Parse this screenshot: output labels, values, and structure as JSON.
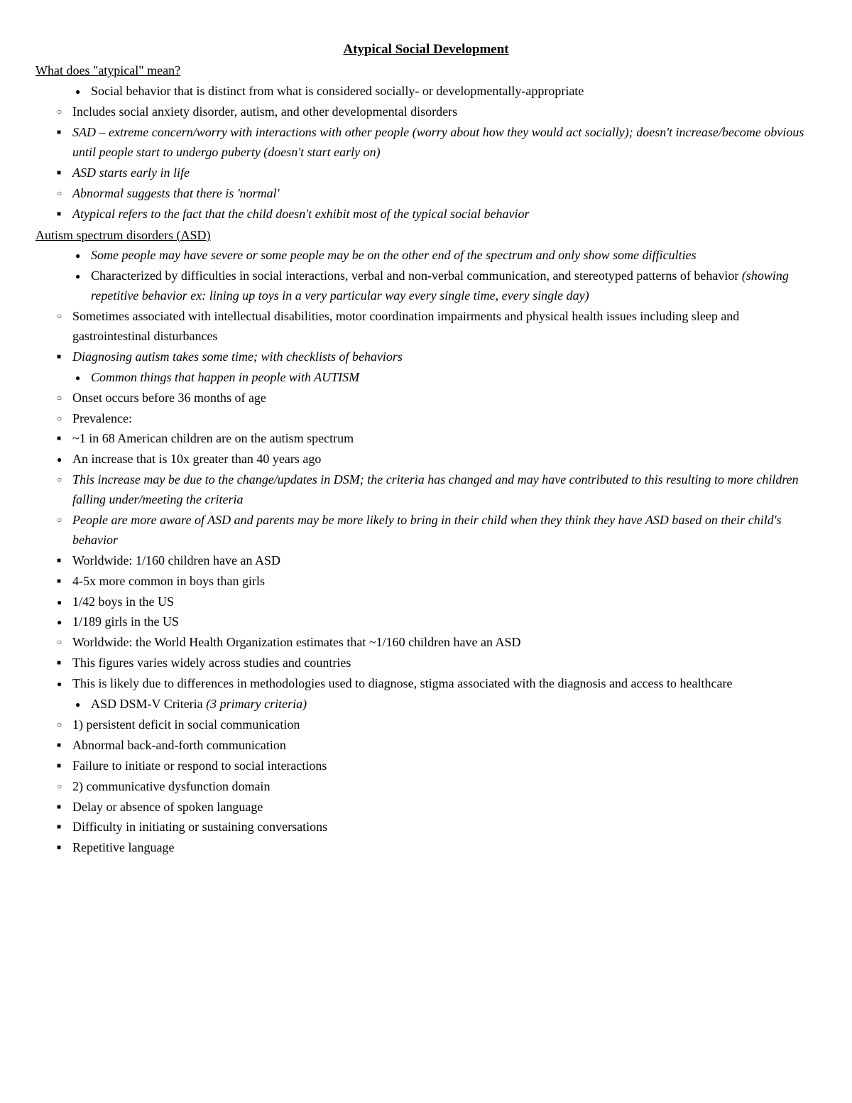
{
  "title": "Atypical Social Development",
  "section1": {
    "heading": "What does \"atypical\" mean?",
    "l1_1": "Social behavior that is distinct from what is considered socially- or developmentally-appropriate",
    "l2_1": "Includes social anxiety disorder, autism, and other developmental disorders",
    "l3_1": "SAD – extreme concern/worry with interactions with other people (worry about how they would act socially); doesn't increase/become obvious until people start to undergo puberty (doesn't start early on)",
    "l3_2": "ASD starts early in life",
    "l2_2": "Abnormal suggests that there is 'normal'",
    "l3_3": "Atypical refers to the fact that the child doesn't exhibit most of the typical social behavior"
  },
  "section2": {
    "heading": "Autism spectrum disorders (ASD)",
    "l1_1": "Some people may have severe or some people may be on the other end of the spectrum and only show some difficulties",
    "l1_2a": "Characterized by difficulties in social interactions, verbal and non-verbal communication, and stereotyped patterns of behavior ",
    "l1_2b": "(showing repetitive behavior ex: lining up toys in a very particular way every single time, every single day)",
    "l2_1": "Sometimes associated with intellectual disabilities, motor coordination impairments and physical health issues including sleep and gastrointestinal disturbances",
    "l3_1": "Diagnosing autism takes some time; with checklists of behaviors",
    "l1_3": "Common things that happen in people with AUTISM",
    "l2_2": "Onset occurs before 36 months of age",
    "l2_3": "Prevalence:",
    "l3_2": "~1 in 68 American children are on the autism spectrum",
    "l4_1": "An increase that is 10x greater than 40 years ago",
    "l5_1": "This increase may be due to the change/updates in DSM; the criteria has changed and may have contributed to this resulting to more children falling under/meeting the criteria",
    "l5_2": "People are more aware of ASD and parents may be more likely to bring in their child when they think they have ASD based on their child's behavior",
    "l3_3": "Worldwide: 1/160 children have an ASD",
    "l3_4": "4-5x more common in boys than girls",
    "l4_2": "1/42 boys in the US",
    "l4_3": "1/189 girls in the US",
    "l2_4": "Worldwide: the World Health Organization estimates that ~1/160 children have an ASD",
    "l3_5": "This figures varies widely across studies and countries",
    "l4_4": "This is likely due to differences in methodologies used to diagnose, stigma associated with the diagnosis and access to healthcare",
    "l1_4a": "ASD DSM-V Criteria ",
    "l1_4b": "(3 primary criteria)",
    "l2_5": "1) persistent deficit in social communication",
    "l3_6": "Abnormal back-and-forth communication",
    "l3_7": "Failure to initiate or respond to social interactions",
    "l2_6": "2) communicative dysfunction domain",
    "l3_8": "Delay or absence of spoken language",
    "l3_9": "Difficulty in initiating or sustaining conversations",
    "l3_10": "Repetitive language"
  }
}
